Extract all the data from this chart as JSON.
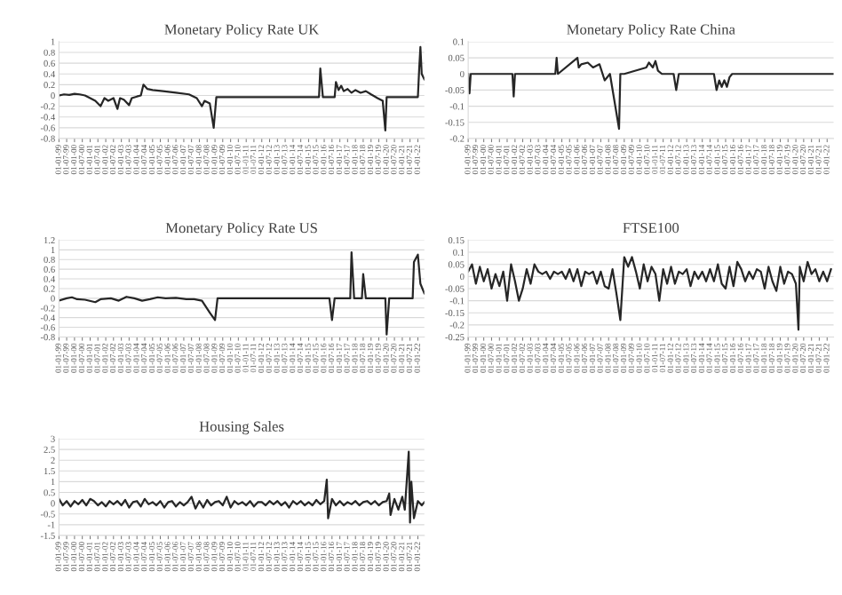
{
  "chart_data": [
    {
      "type": "line",
      "title": "Monetary Policy Rate UK",
      "xlim": [
        "1999-01",
        "2022-06"
      ],
      "ylim": [
        -0.8,
        1
      ],
      "yticks": [
        -0.8,
        -0.6,
        -0.4,
        -0.2,
        0,
        0.2,
        0.4,
        0.6,
        0.8,
        1
      ],
      "grid": "y",
      "marker": "none",
      "line_style": "solid",
      "xticks": [
        {
          "value": "1999-01",
          "label": "01-01-99"
        },
        {
          "value": "1999-07",
          "label": "01-07-99"
        },
        {
          "value": "2000-01",
          "label": "01-01-00"
        },
        {
          "value": "2000-07",
          "label": "01-07-00"
        },
        {
          "value": "2001-01",
          "label": "01-01-01"
        },
        {
          "value": "2001-07",
          "label": "01-07-01"
        },
        {
          "value": "2002-01",
          "label": "01-01-02"
        },
        {
          "value": "2002-07",
          "label": "01-07-02"
        },
        {
          "value": "2003-01",
          "label": "01-01-03"
        },
        {
          "value": "2003-07",
          "label": "01-07-03"
        },
        {
          "value": "2004-01",
          "label": "01-01-04"
        },
        {
          "value": "2004-07",
          "label": "01-07-04"
        },
        {
          "value": "2005-01",
          "label": "01-01-05"
        },
        {
          "value": "2005-07",
          "label": "01-07-05"
        },
        {
          "value": "2006-01",
          "label": "01-01-06"
        },
        {
          "value": "2006-07",
          "label": "01-07-06"
        },
        {
          "value": "2007-01",
          "label": "01-01-07"
        },
        {
          "value": "2007-07",
          "label": "01-07-07"
        },
        {
          "value": "2008-01",
          "label": "01-01-08"
        },
        {
          "value": "2008-07",
          "label": "01-07-08"
        },
        {
          "value": "2009-01",
          "label": "01-01-09"
        },
        {
          "value": "2009-07",
          "label": "01-07-09"
        },
        {
          "value": "2010-01",
          "label": "01-01-10"
        },
        {
          "value": "2010-07",
          "label": "01-07-10"
        },
        {
          "value": "2011-01",
          "label": "01-01-11"
        },
        {
          "value": "2011-07",
          "label": "01-07-11"
        },
        {
          "value": "2012-01",
          "label": "01-01-12"
        },
        {
          "value": "2012-07",
          "label": "01-07-12"
        },
        {
          "value": "2013-01",
          "label": "01-01-13"
        },
        {
          "value": "2013-07",
          "label": "01-07-13"
        },
        {
          "value": "2014-01",
          "label": "01-01-14"
        },
        {
          "value": "2014-07",
          "label": "01-07-14"
        },
        {
          "value": "2015-01",
          "label": "01-01-15"
        },
        {
          "value": "2015-07",
          "label": "01-07-15"
        },
        {
          "value": "2016-01",
          "label": "01-01-16"
        },
        {
          "value": "2016-07",
          "label": "01-07-16"
        },
        {
          "value": "2017-01",
          "label": "01-01-17"
        },
        {
          "value": "2017-07",
          "label": "01-07-17"
        },
        {
          "value": "2018-01",
          "label": "01-01-18"
        },
        {
          "value": "2018-07",
          "label": "01-07-18"
        },
        {
          "value": "2019-01",
          "label": "01-01-19"
        },
        {
          "value": "2019-07",
          "label": "01-07-19"
        },
        {
          "value": "2020-01",
          "label": "01-01-20"
        },
        {
          "value": "2020-07",
          "label": "01-07-20"
        },
        {
          "value": "2021-01",
          "label": "01-01-21"
        },
        {
          "value": "2021-07",
          "label": "01-07-21"
        },
        {
          "value": "2022-01",
          "label": "01-01-22"
        }
      ],
      "series": [
        {
          "color": "#262626",
          "x": [
            "1999-01",
            "1999-05",
            "1999-09",
            "2000-01",
            "2000-05",
            "2000-09",
            "2001-01",
            "2001-05",
            "2001-09",
            "2001-12",
            "2002-03",
            "2002-07",
            "2002-10",
            "2002-12",
            "2003-03",
            "2003-07",
            "2003-09",
            "2004-01",
            "2004-04",
            "2004-06",
            "2004-09",
            "2005-01",
            "2005-09",
            "2006-07",
            "2007-05",
            "2007-11",
            "2008-03",
            "2008-05",
            "2008-09",
            "2008-12",
            "2009-02",
            "2015-09",
            "2015-10",
            "2015-12",
            "2016-09",
            "2016-10",
            "2016-12",
            "2017-02",
            "2017-04",
            "2017-07",
            "2017-10",
            "2018-01",
            "2018-05",
            "2018-09",
            "2019-01",
            "2019-06",
            "2019-10",
            "2019-12",
            "2020-01",
            "2022-01",
            "2022-02",
            "2022-03",
            "2022-04",
            "2022-06"
          ],
          "values": [
            0,
            0.02,
            0.01,
            0.03,
            0.02,
            0,
            -0.05,
            -0.1,
            -0.2,
            -0.05,
            -0.1,
            -0.05,
            -0.25,
            -0.05,
            -0.08,
            -0.18,
            -0.05,
            -0.02,
            0,
            0.2,
            0.12,
            0.1,
            0.08,
            0.05,
            0.02,
            -0.05,
            -0.2,
            -0.1,
            -0.15,
            -0.6,
            -0.03,
            -0.03,
            0.5,
            -0.03,
            -0.03,
            0.25,
            0.1,
            0.18,
            0.08,
            0.12,
            0.05,
            0.1,
            0.05,
            0.08,
            0.02,
            -0.05,
            -0.1,
            -0.65,
            -0.03,
            -0.03,
            0.5,
            0.9,
            0.4,
            0.3
          ]
        }
      ]
    },
    {
      "type": "line",
      "title": "Monetary Policy Rate China",
      "xlim": [
        "1999-01",
        "2022-06"
      ],
      "ylim": [
        -0.2,
        0.1
      ],
      "yticks": [
        -0.2,
        -0.15,
        -0.1,
        -0.05,
        0,
        0.05,
        0.1
      ],
      "grid": "y",
      "marker": "none",
      "line_style": "solid",
      "xticks": [
        {
          "value": "1999-01",
          "label": "01-01-99"
        },
        {
          "value": "1999-07",
          "label": "01-07-99"
        },
        {
          "value": "2000-01",
          "label": "01-01-00"
        },
        {
          "value": "2000-07",
          "label": "01-07-00"
        },
        {
          "value": "2001-01",
          "label": "01-01-01"
        },
        {
          "value": "2001-07",
          "label": "01-07-01"
        },
        {
          "value": "2002-01",
          "label": "01-01-02"
        },
        {
          "value": "2002-07",
          "label": "01-07-02"
        },
        {
          "value": "2003-01",
          "label": "01-01-03"
        },
        {
          "value": "2003-07",
          "label": "01-07-03"
        },
        {
          "value": "2004-01",
          "label": "01-01-04"
        },
        {
          "value": "2004-07",
          "label": "01-07-04"
        },
        {
          "value": "2005-01",
          "label": "01-01-05"
        },
        {
          "value": "2005-07",
          "label": "01-07-05"
        },
        {
          "value": "2006-01",
          "label": "01-01-06"
        },
        {
          "value": "2006-07",
          "label": "01-07-06"
        },
        {
          "value": "2007-01",
          "label": "01-01-07"
        },
        {
          "value": "2007-07",
          "label": "01-07-07"
        },
        {
          "value": "2008-01",
          "label": "01-01-08"
        },
        {
          "value": "2008-07",
          "label": "01-07-08"
        },
        {
          "value": "2009-01",
          "label": "01-01-09"
        },
        {
          "value": "2009-07",
          "label": "01-07-09"
        },
        {
          "value": "2010-01",
          "label": "01-01-10"
        },
        {
          "value": "2010-07",
          "label": "01-07-10"
        },
        {
          "value": "2011-01",
          "label": "01-01-11"
        },
        {
          "value": "2011-07",
          "label": "01-07-11"
        },
        {
          "value": "2012-01",
          "label": "01-01-12"
        },
        {
          "value": "2012-07",
          "label": "01-07-12"
        },
        {
          "value": "2013-01",
          "label": "01-01-13"
        },
        {
          "value": "2013-07",
          "label": "01-07-13"
        },
        {
          "value": "2014-01",
          "label": "01-01-14"
        },
        {
          "value": "2014-07",
          "label": "01-07-14"
        },
        {
          "value": "2015-01",
          "label": "01-01-15"
        },
        {
          "value": "2015-07",
          "label": "01-07-15"
        },
        {
          "value": "2016-01",
          "label": "01-01-16"
        },
        {
          "value": "2016-07",
          "label": "01-07-16"
        },
        {
          "value": "2017-01",
          "label": "01-01-17"
        },
        {
          "value": "2017-07",
          "label": "01-07-17"
        },
        {
          "value": "2018-01",
          "label": "01-01-18"
        },
        {
          "value": "2018-07",
          "label": "01-07-18"
        },
        {
          "value": "2019-01",
          "label": "01-01-19"
        },
        {
          "value": "2019-07",
          "label": "01-07-19"
        },
        {
          "value": "2020-01",
          "label": "01-01-20"
        },
        {
          "value": "2020-07",
          "label": "01-07-20"
        },
        {
          "value": "2021-01",
          "label": "01-01-21"
        },
        {
          "value": "2021-07",
          "label": "01-07-21"
        },
        {
          "value": "2022-01",
          "label": "01-01-22"
        }
      ],
      "series": [
        {
          "color": "#262626",
          "x": [
            "1999-01",
            "1999-02",
            "1999-03",
            "1999-04",
            "2001-11",
            "2001-12",
            "2002-01",
            "2004-08",
            "2004-09",
            "2004-10",
            "2006-01",
            "2006-02",
            "2006-04",
            "2006-09",
            "2007-01",
            "2007-06",
            "2007-10",
            "2008-02",
            "2008-09",
            "2008-10",
            "2009-01",
            "2010-06",
            "2010-08",
            "2010-11",
            "2011-01",
            "2011-03",
            "2011-06",
            "2012-03",
            "2012-05",
            "2012-07",
            "2014-10",
            "2014-12",
            "2015-02",
            "2015-04",
            "2015-06",
            "2015-08",
            "2015-10",
            "2015-12",
            "2022-06"
          ],
          "values": [
            0,
            -0.06,
            0,
            0,
            0,
            -0.07,
            0,
            0,
            0.05,
            0,
            0.05,
            0.02,
            0.03,
            0.035,
            0.02,
            0.03,
            -0.02,
            0,
            -0.17,
            0,
            0,
            0.02,
            0.035,
            0.02,
            0.04,
            0.01,
            0,
            0,
            -0.05,
            0,
            0,
            -0.05,
            -0.02,
            -0.04,
            -0.02,
            -0.04,
            -0.01,
            0,
            0
          ]
        }
      ]
    },
    {
      "type": "line",
      "title": "Monetary Policy Rate US",
      "xlim": [
        "1999-01",
        "2022-06"
      ],
      "ylim": [
        -0.8,
        1.2
      ],
      "yticks": [
        -0.8,
        -0.6,
        -0.4,
        -0.2,
        0,
        0.2,
        0.4,
        0.6,
        0.8,
        1,
        1.2
      ],
      "grid": "y",
      "marker": "none",
      "line_style": "solid",
      "xticks": [
        {
          "value": "1999-01",
          "label": "01-01-99"
        },
        {
          "value": "1999-07",
          "label": "01-07-99"
        },
        {
          "value": "2000-01",
          "label": "01-01-00"
        },
        {
          "value": "2000-07",
          "label": "01-07-00"
        },
        {
          "value": "2001-01",
          "label": "01-01-01"
        },
        {
          "value": "2001-07",
          "label": "01-07-01"
        },
        {
          "value": "2002-01",
          "label": "01-01-02"
        },
        {
          "value": "2002-07",
          "label": "01-07-02"
        },
        {
          "value": "2003-01",
          "label": "01-01-03"
        },
        {
          "value": "2003-07",
          "label": "01-07-03"
        },
        {
          "value": "2004-01",
          "label": "01-01-04"
        },
        {
          "value": "2004-07",
          "label": "01-07-04"
        },
        {
          "value": "2005-01",
          "label": "01-01-05"
        },
        {
          "value": "2005-07",
          "label": "01-07-05"
        },
        {
          "value": "2006-01",
          "label": "01-01-06"
        },
        {
          "value": "2006-07",
          "label": "01-07-06"
        },
        {
          "value": "2007-01",
          "label": "01-01-07"
        },
        {
          "value": "2007-07",
          "label": "01-07-07"
        },
        {
          "value": "2008-01",
          "label": "01-01-08"
        },
        {
          "value": "2008-07",
          "label": "01-07-08"
        },
        {
          "value": "2009-01",
          "label": "01-01-09"
        },
        {
          "value": "2009-07",
          "label": "01-07-09"
        },
        {
          "value": "2010-01",
          "label": "01-01-10"
        },
        {
          "value": "2010-07",
          "label": "01-07-10"
        },
        {
          "value": "2011-01",
          "label": "01-01-11"
        },
        {
          "value": "2011-07",
          "label": "01-07-11"
        },
        {
          "value": "2012-01",
          "label": "01-01-12"
        },
        {
          "value": "2012-07",
          "label": "01-07-12"
        },
        {
          "value": "2013-01",
          "label": "01-01-13"
        },
        {
          "value": "2013-07",
          "label": "01-07-13"
        },
        {
          "value": "2014-01",
          "label": "01-01-14"
        },
        {
          "value": "2014-07",
          "label": "01-07-14"
        },
        {
          "value": "2015-01",
          "label": "01-01-15"
        },
        {
          "value": "2015-07",
          "label": "01-07-15"
        },
        {
          "value": "2016-01",
          "label": "01-01-16"
        },
        {
          "value": "2016-07",
          "label": "01-07-16"
        },
        {
          "value": "2017-01",
          "label": "01-01-17"
        },
        {
          "value": "2017-07",
          "label": "01-07-17"
        },
        {
          "value": "2018-01",
          "label": "01-01-18"
        },
        {
          "value": "2018-07",
          "label": "01-07-18"
        },
        {
          "value": "2019-01",
          "label": "01-01-19"
        },
        {
          "value": "2019-07",
          "label": "01-07-19"
        },
        {
          "value": "2020-01",
          "label": "01-01-20"
        },
        {
          "value": "2020-07",
          "label": "01-07-20"
        },
        {
          "value": "2021-01",
          "label": "01-01-21"
        },
        {
          "value": "2021-07",
          "label": "01-07-21"
        },
        {
          "value": "2022-01",
          "label": "01-01-22"
        }
      ],
      "series": [
        {
          "color": "#262626",
          "x": [
            "1999-01",
            "1999-07",
            "1999-11",
            "2000-03",
            "2000-09",
            "2001-05",
            "2001-09",
            "2002-05",
            "2002-11",
            "2003-05",
            "2003-11",
            "2004-05",
            "2004-11",
            "2005-05",
            "2005-11",
            "2006-07",
            "2007-03",
            "2007-09",
            "2008-03",
            "2008-09",
            "2009-01",
            "2009-03",
            "2016-05",
            "2016-07",
            "2016-09",
            "2017-09",
            "2017-10",
            "2017-12",
            "2018-06",
            "2018-07",
            "2018-09",
            "2019-12",
            "2020-01",
            "2020-03",
            "2021-09",
            "2021-10",
            "2022-01",
            "2022-03",
            "2022-06"
          ],
          "values": [
            -0.05,
            0,
            0.02,
            -0.02,
            -0.03,
            -0.08,
            -0.02,
            0,
            -0.05,
            0.03,
            0,
            -0.05,
            -0.02,
            0.02,
            0,
            0.01,
            -0.02,
            -0.02,
            -0.05,
            -0.3,
            -0.45,
            0,
            0,
            -0.45,
            0,
            0,
            0.95,
            0,
            0,
            0.5,
            0,
            0,
            -0.75,
            0,
            0,
            0.75,
            0.9,
            0.3,
            0.1
          ]
        }
      ]
    },
    {
      "type": "line",
      "title": "FTSE100",
      "xlim": [
        "1999-01",
        "2022-06"
      ],
      "ylim": [
        -0.25,
        0.15
      ],
      "yticks": [
        -0.25,
        -0.2,
        -0.15,
        -0.1,
        -0.05,
        0,
        0.05,
        0.1,
        0.15
      ],
      "grid": "y",
      "marker": "none",
      "line_style": "solid",
      "xticks": [
        {
          "value": "1999-01",
          "label": "01-01-99"
        },
        {
          "value": "1999-07",
          "label": "01-07-99"
        },
        {
          "value": "2000-01",
          "label": "01-01-00"
        },
        {
          "value": "2000-07",
          "label": "01-07-00"
        },
        {
          "value": "2001-01",
          "label": "01-01-01"
        },
        {
          "value": "2001-07",
          "label": "01-07-01"
        },
        {
          "value": "2002-01",
          "label": "01-01-02"
        },
        {
          "value": "2002-07",
          "label": "01-07-02"
        },
        {
          "value": "2003-01",
          "label": "01-01-03"
        },
        {
          "value": "2003-07",
          "label": "01-07-03"
        },
        {
          "value": "2004-01",
          "label": "01-01-04"
        },
        {
          "value": "2004-07",
          "label": "01-07-04"
        },
        {
          "value": "2005-01",
          "label": "01-01-05"
        },
        {
          "value": "2005-07",
          "label": "01-07-05"
        },
        {
          "value": "2006-01",
          "label": "01-01-06"
        },
        {
          "value": "2006-07",
          "label": "01-07-06"
        },
        {
          "value": "2007-01",
          "label": "01-01-07"
        },
        {
          "value": "2007-07",
          "label": "01-07-07"
        },
        {
          "value": "2008-01",
          "label": "01-01-08"
        },
        {
          "value": "2008-07",
          "label": "01-07-08"
        },
        {
          "value": "2009-01",
          "label": "01-01-09"
        },
        {
          "value": "2009-07",
          "label": "01-07-09"
        },
        {
          "value": "2010-01",
          "label": "01-01-10"
        },
        {
          "value": "2010-07",
          "label": "01-07-10"
        },
        {
          "value": "2011-01",
          "label": "01-01-11"
        },
        {
          "value": "2011-07",
          "label": "01-07-11"
        },
        {
          "value": "2012-01",
          "label": "01-01-12"
        },
        {
          "value": "2012-07",
          "label": "01-07-12"
        },
        {
          "value": "2013-01",
          "label": "01-01-13"
        },
        {
          "value": "2013-07",
          "label": "01-07-13"
        },
        {
          "value": "2014-01",
          "label": "01-01-14"
        },
        {
          "value": "2014-07",
          "label": "01-07-14"
        },
        {
          "value": "2015-01",
          "label": "01-01-15"
        },
        {
          "value": "2015-07",
          "label": "01-07-15"
        },
        {
          "value": "2016-01",
          "label": "01-01-16"
        },
        {
          "value": "2016-07",
          "label": "01-07-16"
        },
        {
          "value": "2017-01",
          "label": "01-01-17"
        },
        {
          "value": "2017-07",
          "label": "01-07-17"
        },
        {
          "value": "2018-01",
          "label": "01-01-18"
        },
        {
          "value": "2018-07",
          "label": "01-07-18"
        },
        {
          "value": "2019-01",
          "label": "01-01-19"
        },
        {
          "value": "2019-07",
          "label": "01-07-19"
        },
        {
          "value": "2020-01",
          "label": "01-01-20"
        },
        {
          "value": "2020-07",
          "label": "01-07-20"
        },
        {
          "value": "2021-01",
          "label": "01-01-21"
        },
        {
          "value": "2021-07",
          "label": "01-07-21"
        },
        {
          "value": "2022-01",
          "label": "01-01-22"
        }
      ],
      "series": [
        {
          "color": "#262626",
          "x": [
            "1999-01",
            "1999-04",
            "1999-07",
            "1999-10",
            "2000-01",
            "2000-04",
            "2000-07",
            "2000-10",
            "2001-01",
            "2001-04",
            "2001-07",
            "2001-10",
            "2002-01",
            "2002-04",
            "2002-07",
            "2002-10",
            "2003-01",
            "2003-04",
            "2003-07",
            "2003-10",
            "2004-01",
            "2004-04",
            "2004-07",
            "2004-10",
            "2005-01",
            "2005-04",
            "2005-07",
            "2005-10",
            "2006-01",
            "2006-04",
            "2006-07",
            "2006-10",
            "2007-01",
            "2007-04",
            "2007-07",
            "2007-10",
            "2008-01",
            "2008-04",
            "2008-07",
            "2008-10",
            "2009-01",
            "2009-04",
            "2009-07",
            "2009-10",
            "2010-01",
            "2010-04",
            "2010-07",
            "2010-10",
            "2011-01",
            "2011-04",
            "2011-07",
            "2011-10",
            "2012-01",
            "2012-04",
            "2012-07",
            "2012-10",
            "2013-01",
            "2013-04",
            "2013-07",
            "2013-10",
            "2014-01",
            "2014-04",
            "2014-07",
            "2014-10",
            "2015-01",
            "2015-04",
            "2015-07",
            "2015-10",
            "2016-01",
            "2016-04",
            "2016-07",
            "2016-10",
            "2017-01",
            "2017-04",
            "2017-07",
            "2017-10",
            "2018-01",
            "2018-04",
            "2018-07",
            "2018-10",
            "2019-01",
            "2019-04",
            "2019-07",
            "2019-10",
            "2020-01",
            "2020-03",
            "2020-04",
            "2020-07",
            "2020-10",
            "2021-01",
            "2021-04",
            "2021-07",
            "2021-10",
            "2022-01",
            "2022-04"
          ],
          "values": [
            0.02,
            0.05,
            -0.03,
            0.04,
            -0.02,
            0.03,
            -0.05,
            0.01,
            -0.04,
            0.02,
            -0.1,
            0.05,
            -0.02,
            -0.1,
            -0.05,
            0.03,
            -0.03,
            0.05,
            0.02,
            0.01,
            0.02,
            -0.01,
            0.02,
            0.01,
            0.02,
            -0.01,
            0.03,
            -0.02,
            0.03,
            -0.04,
            0.02,
            0.01,
            0.02,
            -0.03,
            0.02,
            -0.04,
            -0.05,
            0.03,
            -0.07,
            -0.18,
            0.08,
            0.04,
            0.08,
            0.02,
            -0.05,
            0.05,
            -0.02,
            0.04,
            0.01,
            -0.1,
            0.03,
            -0.03,
            0.04,
            -0.03,
            0.02,
            0.01,
            0.03,
            -0.04,
            0.02,
            -0.01,
            0.02,
            -0.02,
            0.03,
            -0.02,
            0.05,
            -0.03,
            -0.05,
            0.04,
            -0.04,
            0.06,
            0.03,
            -0.02,
            0.02,
            -0.01,
            0.03,
            0.02,
            -0.05,
            0.04,
            -0.02,
            -0.06,
            0.04,
            -0.03,
            0.02,
            0.01,
            -0.03,
            -0.22,
            0.04,
            -0.02,
            0.06,
            0.01,
            0.03,
            -0.02,
            0.02,
            -0.02,
            0.03
          ]
        }
      ]
    },
    {
      "type": "line",
      "title": "Housing Sales",
      "xlim": [
        "1999-01",
        "2022-06"
      ],
      "ylim": [
        -1.5,
        3
      ],
      "yticks": [
        -1.5,
        -1,
        -0.5,
        0,
        0.5,
        1,
        1.5,
        2,
        2.5,
        3
      ],
      "grid": "y",
      "marker": "none",
      "line_style": "solid",
      "xticks": [
        {
          "value": "1999-01",
          "label": "01-01-99"
        },
        {
          "value": "1999-07",
          "label": "01-07-99"
        },
        {
          "value": "2000-01",
          "label": "01-01-00"
        },
        {
          "value": "2000-07",
          "label": "01-07-00"
        },
        {
          "value": "2001-01",
          "label": "01-01-01"
        },
        {
          "value": "2001-07",
          "label": "01-07-01"
        },
        {
          "value": "2002-01",
          "label": "01-01-02"
        },
        {
          "value": "2002-07",
          "label": "01-07-02"
        },
        {
          "value": "2003-01",
          "label": "01-01-03"
        },
        {
          "value": "2003-07",
          "label": "01-07-03"
        },
        {
          "value": "2004-01",
          "label": "01-01-04"
        },
        {
          "value": "2004-07",
          "label": "01-07-04"
        },
        {
          "value": "2005-01",
          "label": "01-01-05"
        },
        {
          "value": "2005-07",
          "label": "01-07-05"
        },
        {
          "value": "2006-01",
          "label": "01-01-06"
        },
        {
          "value": "2006-07",
          "label": "01-07-06"
        },
        {
          "value": "2007-01",
          "label": "01-01-07"
        },
        {
          "value": "2007-07",
          "label": "01-07-07"
        },
        {
          "value": "2008-01",
          "label": "01-01-08"
        },
        {
          "value": "2008-07",
          "label": "01-07-08"
        },
        {
          "value": "2009-01",
          "label": "01-01-09"
        },
        {
          "value": "2009-07",
          "label": "01-07-09"
        },
        {
          "value": "2010-01",
          "label": "01-01-10"
        },
        {
          "value": "2010-07",
          "label": "01-07-10"
        },
        {
          "value": "2011-01",
          "label": "01-01-11"
        },
        {
          "value": "2011-07",
          "label": "01-07-11"
        },
        {
          "value": "2012-01",
          "label": "01-01-12"
        },
        {
          "value": "2012-07",
          "label": "01-07-12"
        },
        {
          "value": "2013-01",
          "label": "01-01-13"
        },
        {
          "value": "2013-07",
          "label": "01-07-13"
        },
        {
          "value": "2014-01",
          "label": "01-01-14"
        },
        {
          "value": "2014-07",
          "label": "01-07-14"
        },
        {
          "value": "2015-01",
          "label": "01-01-15"
        },
        {
          "value": "2015-07",
          "label": "01-07-15"
        },
        {
          "value": "2016-01",
          "label": "01-01-16"
        },
        {
          "value": "2016-07",
          "label": "01-07-16"
        },
        {
          "value": "2017-01",
          "label": "01-01-17"
        },
        {
          "value": "2017-07",
          "label": "01-07-17"
        },
        {
          "value": "2018-01",
          "label": "01-01-18"
        },
        {
          "value": "2018-07",
          "label": "01-07-18"
        },
        {
          "value": "2019-01",
          "label": "01-01-19"
        },
        {
          "value": "2019-07",
          "label": "01-07-19"
        },
        {
          "value": "2020-01",
          "label": "01-01-20"
        },
        {
          "value": "2020-07",
          "label": "01-07-20"
        },
        {
          "value": "2021-01",
          "label": "01-01-21"
        },
        {
          "value": "2021-07",
          "label": "01-07-21"
        },
        {
          "value": "2022-01",
          "label": "01-01-22"
        }
      ],
      "series": [
        {
          "color": "#262626",
          "x": [
            "1999-01",
            "1999-04",
            "1999-07",
            "1999-10",
            "2000-01",
            "2000-04",
            "2000-07",
            "2000-10",
            "2001-01",
            "2001-04",
            "2001-07",
            "2001-10",
            "2002-01",
            "2002-04",
            "2002-07",
            "2002-10",
            "2003-01",
            "2003-04",
            "2003-07",
            "2003-10",
            "2004-01",
            "2004-04",
            "2004-07",
            "2004-10",
            "2005-01",
            "2005-04",
            "2005-07",
            "2005-10",
            "2006-01",
            "2006-04",
            "2006-07",
            "2006-10",
            "2007-01",
            "2007-04",
            "2007-07",
            "2007-10",
            "2008-01",
            "2008-04",
            "2008-07",
            "2008-10",
            "2009-01",
            "2009-04",
            "2009-07",
            "2009-10",
            "2010-01",
            "2010-04",
            "2010-07",
            "2010-10",
            "2011-01",
            "2011-04",
            "2011-07",
            "2011-10",
            "2012-01",
            "2012-04",
            "2012-07",
            "2012-10",
            "2013-01",
            "2013-04",
            "2013-07",
            "2013-10",
            "2014-01",
            "2014-04",
            "2014-07",
            "2014-10",
            "2015-01",
            "2015-04",
            "2015-07",
            "2015-10",
            "2016-01",
            "2016-03",
            "2016-04",
            "2016-07",
            "2016-10",
            "2017-01",
            "2017-04",
            "2017-07",
            "2017-10",
            "2018-01",
            "2018-04",
            "2018-07",
            "2018-10",
            "2019-01",
            "2019-04",
            "2019-07",
            "2019-10",
            "2020-01",
            "2020-03",
            "2020-04",
            "2020-07",
            "2020-10",
            "2021-01",
            "2021-03",
            "2021-06",
            "2021-07",
            "2021-08",
            "2021-10",
            "2022-01",
            "2022-04",
            "2022-06"
          ],
          "values": [
            0.2,
            -0.1,
            0.1,
            -0.15,
            0.1,
            -0.05,
            0.15,
            -0.1,
            0.2,
            0.1,
            -0.1,
            0.05,
            -0.15,
            0.1,
            -0.05,
            0.1,
            -0.1,
            0.15,
            -0.2,
            0.05,
            0.1,
            -0.15,
            0.2,
            -0.05,
            0.05,
            -0.1,
            0.1,
            -0.2,
            0.05,
            0.1,
            -0.15,
            0.05,
            -0.1,
            0.05,
            0.3,
            -0.25,
            0.1,
            -0.2,
            0.15,
            -0.1,
            0.05,
            0.1,
            -0.1,
            0.3,
            -0.2,
            0.1,
            -0.05,
            0.05,
            -0.1,
            0.1,
            -0.15,
            0.05,
            0.05,
            -0.1,
            0.1,
            -0.05,
            0.1,
            -0.1,
            0.05,
            -0.2,
            0.1,
            -0.05,
            0.1,
            -0.1,
            0.05,
            -0.1,
            0.15,
            -0.05,
            0.1,
            1.1,
            -0.7,
            0.2,
            -0.1,
            0.1,
            -0.1,
            0.05,
            -0.05,
            0.1,
            -0.1,
            0.05,
            0.1,
            -0.05,
            0.1,
            -0.1,
            0.05,
            0.1,
            0.45,
            -0.55,
            0.2,
            -0.3,
            0.3,
            -0.3,
            2.4,
            -0.9,
            1,
            -0.7,
            0.1,
            -0.1,
            0.05
          ]
        }
      ]
    }
  ]
}
